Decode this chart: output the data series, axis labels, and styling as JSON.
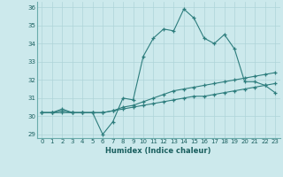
{
  "title": "",
  "xlabel": "Humidex (Indice chaleur)",
  "ylabel": "",
  "x": [
    0,
    1,
    2,
    3,
    4,
    5,
    6,
    7,
    8,
    9,
    10,
    11,
    12,
    13,
    14,
    15,
    16,
    17,
    18,
    19,
    20,
    21,
    22,
    23
  ],
  "line1": [
    30.2,
    30.2,
    30.4,
    30.2,
    30.2,
    30.2,
    29.0,
    29.7,
    31.0,
    30.9,
    33.3,
    34.3,
    34.8,
    34.7,
    35.9,
    35.4,
    34.3,
    34.0,
    34.5,
    33.7,
    31.9,
    31.9,
    31.7,
    31.3
  ],
  "line2": [
    30.2,
    30.2,
    30.3,
    30.2,
    30.2,
    30.2,
    30.2,
    30.3,
    30.5,
    30.6,
    30.8,
    31.0,
    31.2,
    31.4,
    31.5,
    31.6,
    31.7,
    31.8,
    31.9,
    32.0,
    32.1,
    32.2,
    32.3,
    32.4
  ],
  "line3": [
    30.2,
    30.2,
    30.2,
    30.2,
    30.2,
    30.2,
    30.2,
    30.3,
    30.4,
    30.5,
    30.6,
    30.7,
    30.8,
    30.9,
    31.0,
    31.1,
    31.1,
    31.2,
    31.3,
    31.4,
    31.5,
    31.6,
    31.7,
    31.8
  ],
  "ylim": [
    28.8,
    36.3
  ],
  "xlim": [
    -0.5,
    23.5
  ],
  "yticks": [
    29,
    30,
    31,
    32,
    33,
    34,
    35,
    36
  ],
  "xticks": [
    0,
    1,
    2,
    3,
    4,
    5,
    6,
    7,
    8,
    9,
    10,
    11,
    12,
    13,
    14,
    15,
    16,
    17,
    18,
    19,
    20,
    21,
    22,
    23
  ],
  "line_color": "#2d7d7d",
  "bg_color": "#cce9ec",
  "grid_color": "#aed4d8",
  "tick_label_color": "#1a5f5f",
  "xlabel_color": "#1a5f5f",
  "marker": "+"
}
